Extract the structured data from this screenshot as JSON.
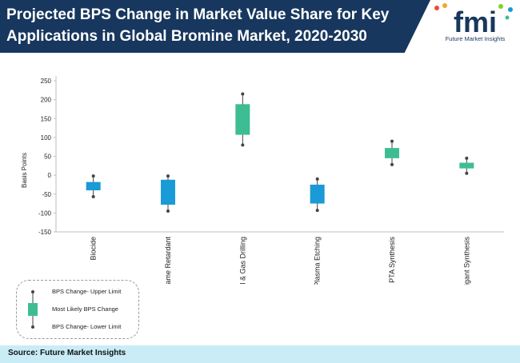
{
  "header": {
    "title": "Projected BPS Change in Market Value Share for Key Applications in Global Bromine Market, 2020-2030"
  },
  "logo": {
    "letters": "fmi",
    "tagline": "Future Market Insights"
  },
  "chart_data": {
    "type": "box",
    "title": "Projected BPS Change in Market Value Share for Key Applications in Global Bromine Market, 2020-2030",
    "ylabel": "Basis Points",
    "xlabel": "",
    "ylim": [
      -150,
      250
    ],
    "yticks": [
      -150,
      -100,
      -50,
      0,
      50,
      100,
      150,
      200,
      250
    ],
    "grid": false,
    "categories": [
      "Biocide",
      "Flame Retardant",
      "Oil & Gas Drilling",
      "Plasma Etching",
      "PTA Synthesis",
      "Fumigant Synthesis"
    ],
    "series": [
      {
        "name": "BPS Change- Upper Limit",
        "values": [
          -2,
          -2,
          215,
          -10,
          90,
          45
        ]
      },
      {
        "name": "Most Likely BPS Change",
        "values": [
          [
            -40,
            -18
          ],
          [
            -78,
            -12
          ],
          [
            107,
            188
          ],
          [
            -75,
            -25
          ],
          [
            45,
            72
          ],
          [
            18,
            33
          ]
        ]
      },
      {
        "name": "BPS Change- Lower Limit",
        "values": [
          -57,
          -95,
          80,
          -93,
          28,
          5
        ]
      }
    ],
    "box_colors": [
      "#1a9ad6",
      "#1a9ad6",
      "#3dbd93",
      "#1a9ad6",
      "#3dbd93",
      "#3dbd93"
    ],
    "legend_position": "bottom-left"
  },
  "legend": {
    "upper": "BPS Change- Upper Limit",
    "likely": "Most Likely BPS Change",
    "lower": "BPS Change- Lower Limit"
  },
  "source": "Source: Future Market Insights",
  "colors": {
    "title_band": "#17375e",
    "decline_box": "#1a9ad6",
    "growth_box": "#3dbd93",
    "source_band": "#c9ecf7"
  }
}
